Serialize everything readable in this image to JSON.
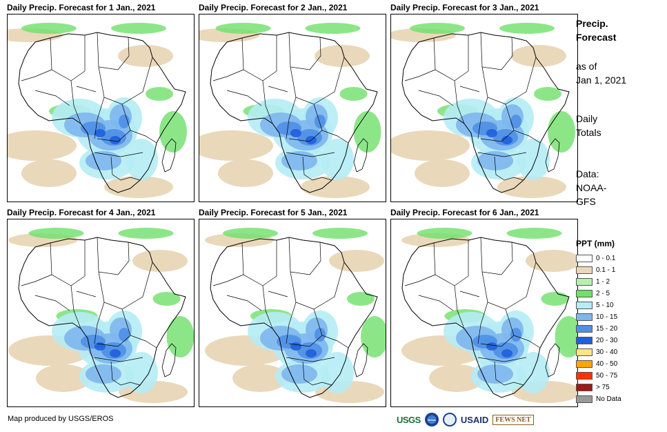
{
  "panels": [
    {
      "title": "Daily Precip. Forecast for 1 Jan., 2021"
    },
    {
      "title": "Daily Precip. Forecast for 2 Jan., 2021"
    },
    {
      "title": "Daily Precip. Forecast for 3 Jan., 2021"
    },
    {
      "title": "Daily Precip. Forecast for 4 Jan., 2021"
    },
    {
      "title": "Daily Precip. Forecast for 5 Jan., 2021"
    },
    {
      "title": "Daily Precip. Forecast for 6 Jan., 2021"
    }
  ],
  "sidebar": {
    "title_line1": "Precip.",
    "title_line2": "Forecast",
    "asof_line1": "as of",
    "asof_line2": "Jan 1, 2021",
    "totals_line1": "Daily",
    "totals_line2": "Totals",
    "source_line1": "Data:",
    "source_line2": "NOAA-",
    "source_line3": "GFS"
  },
  "legend": {
    "title": "PPT (mm)",
    "items": [
      {
        "label": "0 - 0.1",
        "color": "#ffffff"
      },
      {
        "label": "0.1 - 1",
        "color": "#ead8bb"
      },
      {
        "label": "1 - 2",
        "color": "#b7f0ad"
      },
      {
        "label": "2 - 5",
        "color": "#6fe06a"
      },
      {
        "label": "5 - 10",
        "color": "#b5ecf5"
      },
      {
        "label": "10 - 15",
        "color": "#7eb6ee"
      },
      {
        "label": "15 - 20",
        "color": "#4f8fe6"
      },
      {
        "label": "20 - 30",
        "color": "#1f5fdc"
      },
      {
        "label": "30 - 40",
        "color": "#ffe680"
      },
      {
        "label": "40 - 50",
        "color": "#ffa500"
      },
      {
        "label": "50 - 75",
        "color": "#ff3300"
      },
      {
        "label": "> 75",
        "color": "#a01818"
      },
      {
        "label": "No Data",
        "color": "#999999"
      }
    ]
  },
  "credit": "Map produced by USGS/EROS",
  "logos": {
    "usgs": "USGS",
    "noaa": "NOAA",
    "usaid": "USAID",
    "fews": "FEWS NET"
  }
}
